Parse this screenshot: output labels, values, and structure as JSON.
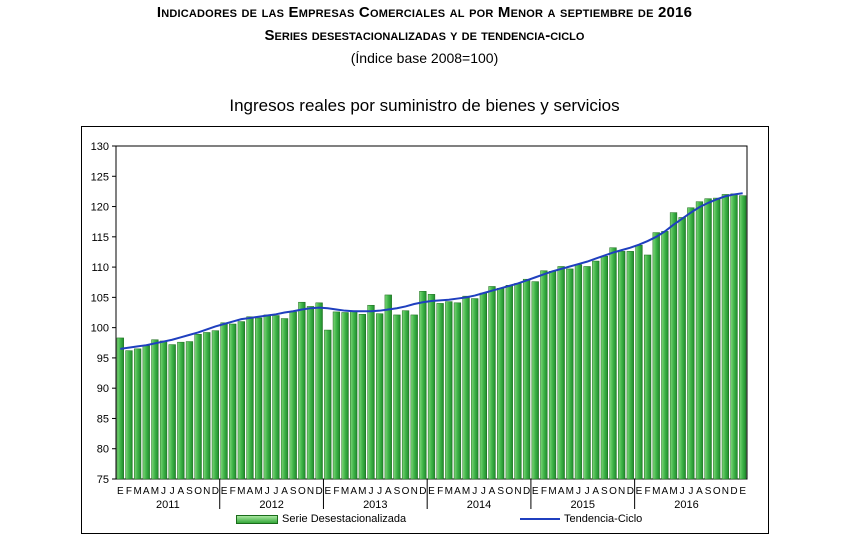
{
  "header": {
    "title_line1": "Indicadores de las Empresas Comerciales al por Menor a septiembre de 2016",
    "title_line2": "Series desestacionalizadas y de tendencia-ciclo",
    "title_line3": "(Índice base 2008=100)"
  },
  "chart_data": {
    "type": "bar",
    "title": "Ingresos reales por suministro de bienes y servicios",
    "ylim": [
      75,
      130
    ],
    "yticks": [
      75,
      80,
      85,
      90,
      95,
      100,
      105,
      110,
      115,
      120,
      125,
      130
    ],
    "month_labels": [
      "E",
      "F",
      "M",
      "A",
      "M",
      "J",
      "J",
      "A",
      "S",
      "O",
      "N",
      "D"
    ],
    "years": [
      "2011",
      "2012",
      "2013",
      "2014",
      "2015",
      "2016"
    ],
    "grid": false,
    "legend_position": "bottom",
    "bar_color": "#2ea43a",
    "line_color": "#1f3fbf",
    "series": [
      {
        "name": "Serie Desestacionalizada",
        "values": [
          98.3,
          96.2,
          96.5,
          97.0,
          98.0,
          97.8,
          97.2,
          97.6,
          97.7,
          98.9,
          99.2,
          99.5,
          100.8,
          100.6,
          101.0,
          101.8,
          101.6,
          102.1,
          102.0,
          101.5,
          102.6,
          104.2,
          103.5,
          104.1,
          99.6,
          102.6,
          102.5,
          102.8,
          102.2,
          103.7,
          102.3,
          105.4,
          102.1,
          102.8,
          102.1,
          106.0,
          105.5,
          104.0,
          104.3,
          104.1,
          105.2,
          104.8,
          105.7,
          106.8,
          106.5,
          107.0,
          107.3,
          108.0,
          107.6,
          109.4,
          109.3,
          110.1,
          109.7,
          110.4,
          110.1,
          111.0,
          111.8,
          113.2,
          112.6,
          112.6,
          113.6,
          112.0,
          115.7,
          115.9,
          119.0,
          118.2,
          119.8,
          120.8,
          121.3,
          121.4,
          122.0,
          122.1,
          121.8
        ]
      },
      {
        "name": "Tendencia-Ciclo",
        "values": [
          96.5,
          96.7,
          96.9,
          97.1,
          97.4,
          97.7,
          98.0,
          98.4,
          98.8,
          99.2,
          99.7,
          100.2,
          100.6,
          101.0,
          101.4,
          101.6,
          101.8,
          102.0,
          102.2,
          102.5,
          102.7,
          103.0,
          103.2,
          103.3,
          103.2,
          103.0,
          102.8,
          102.7,
          102.7,
          102.7,
          102.8,
          103.0,
          103.2,
          103.5,
          103.9,
          104.2,
          104.4,
          104.5,
          104.6,
          104.8,
          105.0,
          105.3,
          105.7,
          106.1,
          106.5,
          106.9,
          107.3,
          107.8,
          108.3,
          108.8,
          109.3,
          109.7,
          110.1,
          110.5,
          110.9,
          111.4,
          111.9,
          112.4,
          112.8,
          113.2,
          113.7,
          114.3,
          115.0,
          115.9,
          117.0,
          118.0,
          119.0,
          119.9,
          120.6,
          121.2,
          121.7,
          122.0,
          122.2
        ]
      }
    ]
  },
  "legend": {
    "bars_label": "Serie Desestacionalizada",
    "line_label": "Tendencia-Ciclo"
  }
}
